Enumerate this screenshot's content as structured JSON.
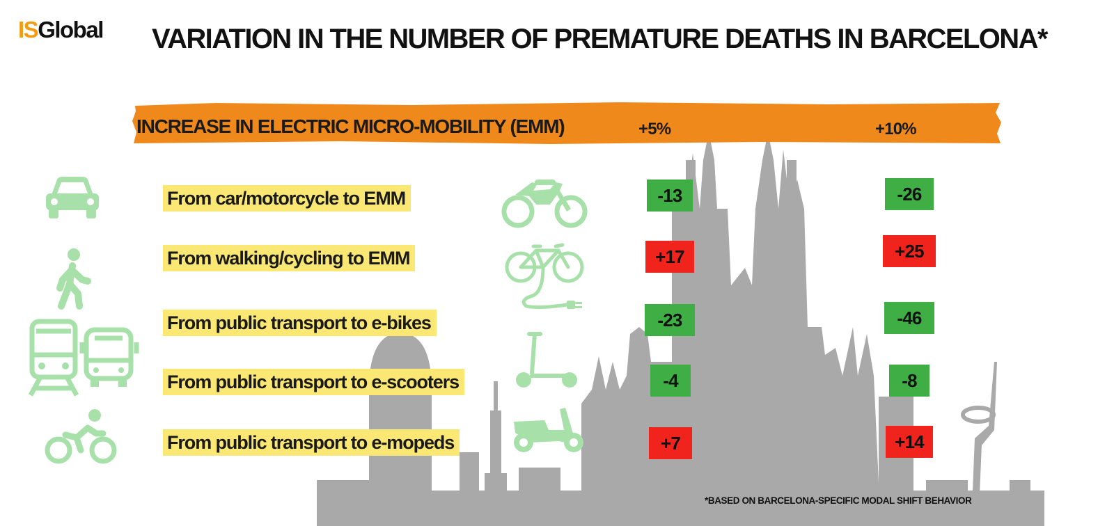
{
  "logo": {
    "prefix": "IS",
    "suffix": "Global"
  },
  "title": "VARIATION IN THE NUMBER OF PREMATURE DEATHS IN BARCELONA*",
  "banner": {
    "label": "INCREASE IN ELECTRIC MICRO-MOBILITY (EMM)",
    "col_5": "+5%",
    "col_10": "+10%"
  },
  "rows": [
    {
      "label": "From car/motorcycle to EMM",
      "v5": "-13",
      "v10": "-26",
      "effect5": "decrease",
      "effect10": "decrease"
    },
    {
      "label": "From walking/cycling to EMM",
      "v5": "+17",
      "v10": "+25",
      "effect5": "increase",
      "effect10": "increase"
    },
    {
      "label": "From public transport to e-bikes",
      "v5": "-23",
      "v10": "-46",
      "effect5": "decrease",
      "effect10": "decrease"
    },
    {
      "label": "From public transport to e-scooters",
      "v5": "-4",
      "v10": "-8",
      "effect5": "decrease",
      "effect10": "decrease"
    },
    {
      "label": "From public transport to e-mopeds",
      "v5": "+7",
      "v10": "+14",
      "effect5": "increase",
      "effect10": "increase"
    }
  ],
  "footnote": "*BASED ON BARCELONA-SPECIFIC MODAL SHIFT BEHAVIOR",
  "colors": {
    "orange": "#f0891c",
    "highlight": "#fbe774",
    "decrease": "#3fae45",
    "increase": "#f0241c",
    "icon": "#a8e0aa",
    "skyline": "#a9a9a9"
  },
  "icons": {
    "left": [
      "car-icon",
      "pedestrian-icon",
      "train-icon",
      "bus-icon",
      "cyclist-icon"
    ],
    "middle": [
      "motorcycle-icon",
      "electric-bicycle-icon",
      "e-scooter-icon",
      "e-moped-icon"
    ]
  }
}
